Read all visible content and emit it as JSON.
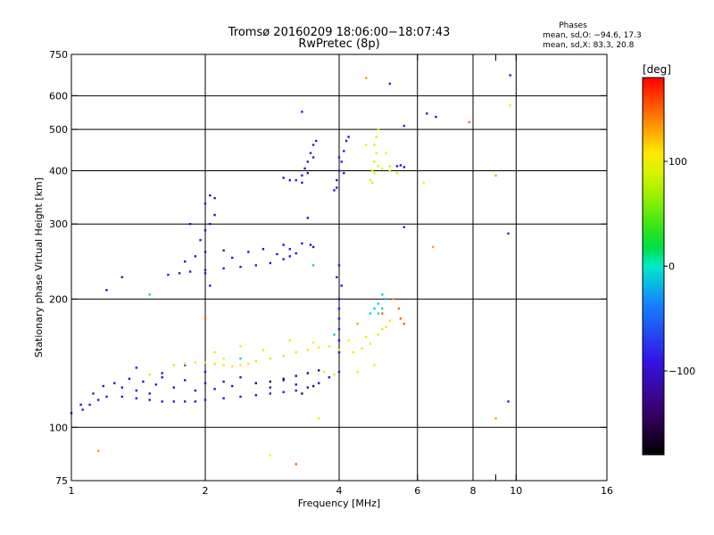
{
  "chart_data": {
    "type": "scatter",
    "title": "Tromsø 20160209 18:06:00−18:07:43",
    "subtitle": "RwPretec (8p)",
    "xlabel": "Frequency [MHz]",
    "ylabel": "Stationary phase Virtual Height [km]",
    "xscale": "log",
    "yscale": "log",
    "xlim": [
      1,
      16
    ],
    "ylim": [
      75,
      750
    ],
    "xticks": [
      1,
      2,
      4,
      6,
      8,
      9,
      10,
      16
    ],
    "xtick_labels": [
      "1",
      "2",
      "4",
      "6",
      "8",
      "",
      "10",
      "16"
    ],
    "xgrid": [
      2,
      4,
      6,
      8,
      10
    ],
    "yticks": [
      75,
      100,
      200,
      300,
      400,
      500,
      600,
      750
    ],
    "ytick_labels": [
      "75",
      "100",
      "200",
      "300",
      "400",
      "500",
      "600",
      "750"
    ],
    "ygrid": [
      100,
      200,
      300,
      400,
      500,
      600
    ],
    "stats": {
      "heading": "Phases",
      "line1": "mean, sd,O: −94.6, 17.3",
      "line2": "mean, sd,X:  83.3, 20.8"
    },
    "colorbar": {
      "label": "[deg]",
      "min": -180,
      "max": 180,
      "ticks": [
        -100,
        0,
        100
      ],
      "tick_labels": [
        "−100",
        "0",
        "100"
      ]
    },
    "traces": [
      {
        "name": "o-low",
        "phase": -100,
        "points": [
          [
            1.0,
            108
          ],
          [
            1.06,
            110
          ],
          [
            1.1,
            113
          ],
          [
            1.15,
            116
          ],
          [
            1.2,
            118
          ],
          [
            1.3,
            118
          ],
          [
            1.4,
            117
          ],
          [
            1.5,
            116
          ],
          [
            1.6,
            115
          ],
          [
            1.7,
            115
          ],
          [
            1.8,
            115
          ],
          [
            1.9,
            115
          ],
          [
            2.0,
            116
          ],
          [
            2.2,
            117
          ],
          [
            2.4,
            118
          ],
          [
            2.6,
            119
          ],
          [
            2.8,
            120
          ],
          [
            3.0,
            121
          ],
          [
            3.2,
            122
          ],
          [
            3.4,
            124
          ],
          [
            3.6,
            127
          ],
          [
            3.8,
            131
          ],
          [
            4.0,
            135
          ]
        ]
      },
      {
        "name": "o-low-scatter",
        "phase": -105,
        "points": [
          [
            1.05,
            113
          ],
          [
            1.12,
            120
          ],
          [
            1.18,
            125
          ],
          [
            1.25,
            127
          ],
          [
            1.3,
            124
          ],
          [
            1.35,
            130
          ],
          [
            1.4,
            122
          ],
          [
            1.45,
            128
          ],
          [
            1.5,
            120
          ],
          [
            1.55,
            126
          ],
          [
            1.6,
            131
          ],
          [
            1.7,
            124
          ],
          [
            1.8,
            129
          ],
          [
            1.9,
            122
          ],
          [
            2.0,
            127
          ],
          [
            2.1,
            123
          ],
          [
            2.2,
            128
          ],
          [
            2.3,
            125
          ],
          [
            2.4,
            131
          ],
          [
            2.6,
            127
          ],
          [
            2.8,
            124
          ],
          [
            3.0,
            129
          ],
          [
            3.2,
            126
          ],
          [
            1.4,
            138
          ],
          [
            1.6,
            134
          ],
          [
            1.8,
            140
          ],
          [
            2.0,
            135
          ]
        ]
      },
      {
        "name": "o-high",
        "phase": -100,
        "points": [
          [
            1.65,
            228
          ],
          [
            1.75,
            230
          ],
          [
            1.85,
            232
          ],
          [
            2.0,
            234
          ],
          [
            2.2,
            236
          ],
          [
            2.4,
            238
          ],
          [
            2.6,
            240
          ],
          [
            2.8,
            243
          ],
          [
            3.0,
            248
          ],
          [
            3.1,
            252
          ],
          [
            3.2,
            256
          ]
        ]
      },
      {
        "name": "o-high-scatter",
        "phase": -105,
        "points": [
          [
            1.8,
            245
          ],
          [
            1.9,
            252
          ],
          [
            2.0,
            258
          ],
          [
            1.95,
            275
          ],
          [
            2.0,
            290
          ],
          [
            2.05,
            300
          ],
          [
            2.1,
            315
          ],
          [
            2.0,
            335
          ],
          [
            2.1,
            345
          ],
          [
            2.05,
            350
          ],
          [
            2.3,
            250
          ],
          [
            2.5,
            258
          ],
          [
            2.7,
            262
          ],
          [
            2.9,
            255
          ],
          [
            3.1,
            262
          ],
          [
            3.3,
            270
          ],
          [
            3.45,
            268
          ],
          [
            3.5,
            265
          ],
          [
            1.85,
            300
          ],
          [
            2.2,
            260
          ],
          [
            3.0,
            268
          ]
        ]
      },
      {
        "name": "o-f2",
        "phase": -95,
        "points": [
          [
            3.2,
            380
          ],
          [
            3.3,
            390
          ],
          [
            3.35,
            405
          ],
          [
            3.4,
            420
          ],
          [
            3.45,
            440
          ],
          [
            3.5,
            460
          ],
          [
            3.55,
            470
          ],
          [
            3.4,
            395
          ],
          [
            3.3,
            375
          ],
          [
            3.5,
            430
          ]
        ]
      },
      {
        "name": "o-f2-b",
        "phase": -100,
        "points": [
          [
            3.9,
            360
          ],
          [
            3.95,
            380
          ],
          [
            4.0,
            400
          ],
          [
            4.05,
            420
          ],
          [
            4.1,
            445
          ],
          [
            4.15,
            470
          ],
          [
            4.2,
            480
          ],
          [
            4.0,
            430
          ],
          [
            4.1,
            395
          ],
          [
            3.95,
            365
          ],
          [
            5.4,
            410
          ],
          [
            5.5,
            412
          ],
          [
            5.6,
            408
          ]
        ]
      },
      {
        "name": "vert",
        "phase": -100,
        "points": [
          [
            4.0,
            150
          ],
          [
            4.0,
            160
          ],
          [
            4.0,
            170
          ],
          [
            4.0,
            180
          ],
          [
            4.0,
            190
          ],
          [
            4.0,
            200
          ],
          [
            4.05,
            215
          ],
          [
            3.95,
            225
          ],
          [
            4.0,
            240
          ],
          [
            2.05,
            215
          ],
          [
            2.0,
            230
          ],
          [
            1.3,
            225
          ],
          [
            1.2,
            210
          ]
        ]
      },
      {
        "name": "x-low",
        "phase": 110,
        "points": [
          [
            1.7,
            140
          ],
          [
            1.8,
            141
          ],
          [
            1.9,
            142
          ],
          [
            2.0,
            142
          ],
          [
            2.1,
            141
          ],
          [
            2.2,
            140
          ],
          [
            2.3,
            139
          ],
          [
            2.4,
            140
          ],
          [
            2.5,
            141
          ],
          [
            2.6,
            143
          ],
          [
            2.8,
            145
          ],
          [
            3.0,
            147
          ],
          [
            3.2,
            150
          ],
          [
            3.4,
            152
          ],
          [
            3.6,
            154
          ],
          [
            3.8,
            155
          ],
          [
            4.0,
            152
          ],
          [
            4.3,
            150
          ],
          [
            4.5,
            153
          ],
          [
            4.7,
            157
          ],
          [
            4.9,
            165
          ],
          [
            5.1,
            172
          ],
          [
            5.2,
            178
          ]
        ]
      },
      {
        "name": "x-scatter",
        "phase": 95,
        "points": [
          [
            2.1,
            150
          ],
          [
            2.4,
            155
          ],
          [
            2.7,
            152
          ],
          [
            3.1,
            160
          ],
          [
            3.5,
            158
          ],
          [
            4.2,
            160
          ],
          [
            4.6,
            163
          ],
          [
            5.0,
            170
          ],
          [
            4.8,
            140
          ],
          [
            4.4,
            135
          ],
          [
            3.9,
            133
          ],
          [
            3.7,
            135
          ],
          [
            1.5,
            133
          ],
          [
            2.2,
            145
          ]
        ]
      },
      {
        "name": "x-high",
        "phase": 90,
        "points": [
          [
            4.7,
            380
          ],
          [
            4.75,
            400
          ],
          [
            4.8,
            420
          ],
          [
            4.85,
            440
          ],
          [
            4.8,
            460
          ],
          [
            4.85,
            480
          ],
          [
            4.9,
            500
          ],
          [
            4.8,
            395
          ],
          [
            4.75,
            375
          ],
          [
            4.9,
            410
          ],
          [
            5.0,
            405
          ],
          [
            5.2,
            400
          ],
          [
            5.4,
            395
          ],
          [
            5.2,
            410
          ]
        ]
      },
      {
        "name": "mid-phase",
        "phase": -10,
        "points": [
          [
            4.8,
            190
          ],
          [
            4.9,
            195
          ],
          [
            5.0,
            190
          ],
          [
            4.7,
            185
          ],
          [
            5.1,
            200
          ],
          [
            5.0,
            205
          ],
          [
            4.9,
            185
          ],
          [
            3.5,
            240
          ],
          [
            1.5,
            205
          ],
          [
            2.4,
            145
          ],
          [
            3.9,
            165
          ]
        ]
      },
      {
        "name": "neg-dark",
        "phase": -140,
        "points": [
          [
            3.0,
            130
          ],
          [
            3.2,
            132
          ],
          [
            3.4,
            134
          ],
          [
            3.6,
            136
          ],
          [
            2.8,
            128
          ],
          [
            2.6,
            127
          ],
          [
            3.3,
            120
          ],
          [
            3.5,
            125
          ]
        ]
      },
      {
        "name": "red-dots",
        "phase": 150,
        "points": [
          [
            7.85,
            520
          ],
          [
            5.45,
            190
          ],
          [
            5.5,
            180
          ],
          [
            5.6,
            175
          ],
          [
            2.0,
            180
          ],
          [
            3.2,
            82
          ],
          [
            5.0,
            185
          ]
        ]
      },
      {
        "name": "orange-dots",
        "phase": 130,
        "points": [
          [
            4.6,
            660
          ],
          [
            9.0,
            390
          ],
          [
            6.5,
            265
          ],
          [
            9.0,
            105
          ],
          [
            5.3,
            200
          ],
          [
            4.4,
            175
          ],
          [
            1.15,
            88
          ]
        ]
      },
      {
        "name": "yellow-dots",
        "phase": 100,
        "points": [
          [
            9.7,
            570
          ],
          [
            5.1,
            440
          ],
          [
            6.2,
            375
          ],
          [
            4.6,
            460
          ],
          [
            3.6,
            105
          ],
          [
            2.8,
            86
          ]
        ]
      },
      {
        "name": "sparse-blue",
        "phase": -90,
        "points": [
          [
            9.7,
            670
          ],
          [
            5.2,
            640
          ],
          [
            6.3,
            545
          ],
          [
            6.6,
            535
          ],
          [
            5.6,
            510
          ],
          [
            3.3,
            550
          ],
          [
            9.6,
            285
          ],
          [
            9.6,
            115
          ],
          [
            5.6,
            295
          ],
          [
            3.4,
            310
          ],
          [
            3.0,
            385
          ],
          [
            3.1,
            380
          ]
        ]
      }
    ]
  }
}
